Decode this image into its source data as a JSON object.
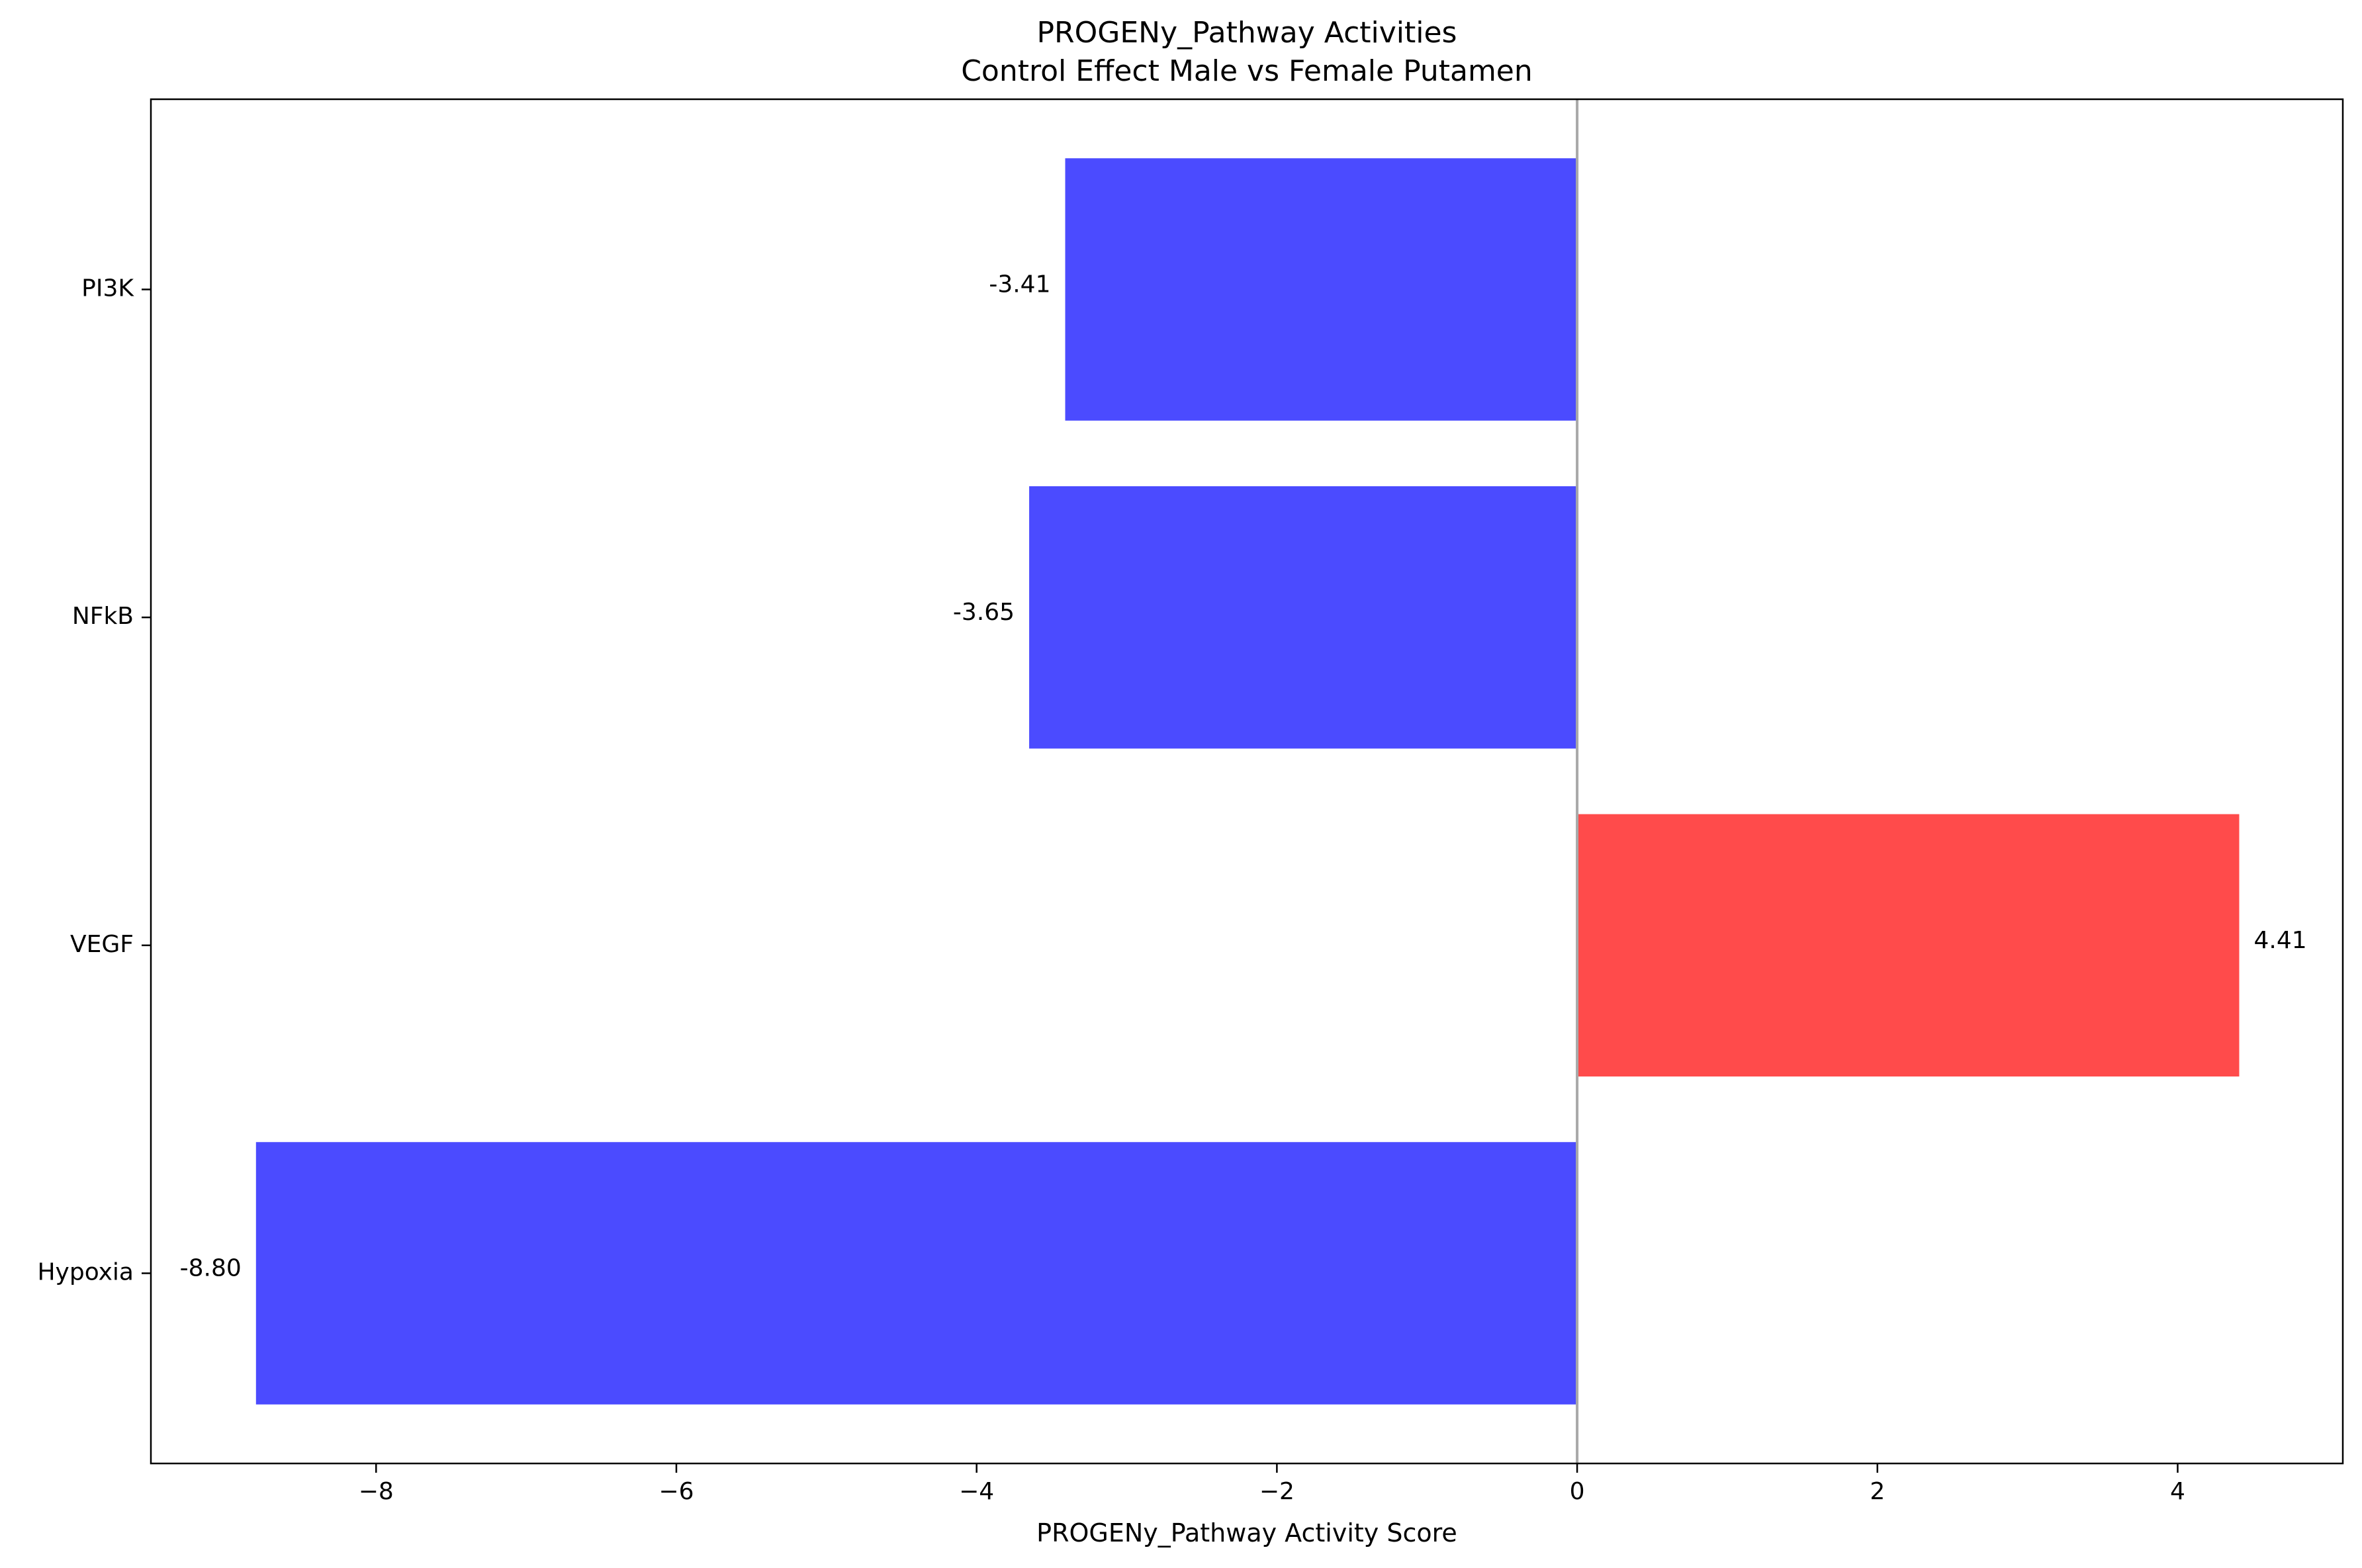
{
  "chart_data": {
    "type": "bar",
    "orientation": "horizontal",
    "title": "PROGENy_Pathway Activities",
    "subtitle": "Control Effect Male vs Female Putamen",
    "xlabel": "PROGENy_Pathway Activity Score",
    "ylabel": "",
    "xlim": [
      -9.5,
      5.1
    ],
    "x_ticks": [
      -8,
      -6,
      -4,
      -2,
      0,
      2,
      4
    ],
    "x_tick_labels": [
      "−8",
      "−6",
      "−4",
      "−2",
      "0",
      "2",
      "4"
    ],
    "categories": [
      "PI3K",
      "NFkB",
      "VEGF",
      "Hypoxia"
    ],
    "values": [
      -3.41,
      -3.65,
      4.41,
      -8.8
    ],
    "data_labels": [
      "-3.41",
      "-3.65",
      "4.41",
      "-8.80"
    ],
    "colors": [
      "#4b4bff",
      "#4b4bff",
      "#ff4b4b",
      "#4b4bff"
    ],
    "positive_color": "#ff4b4b",
    "negative_color": "#4b4bff",
    "zero_line_color": "#a9a9a9",
    "grid": false,
    "legend": "none"
  }
}
